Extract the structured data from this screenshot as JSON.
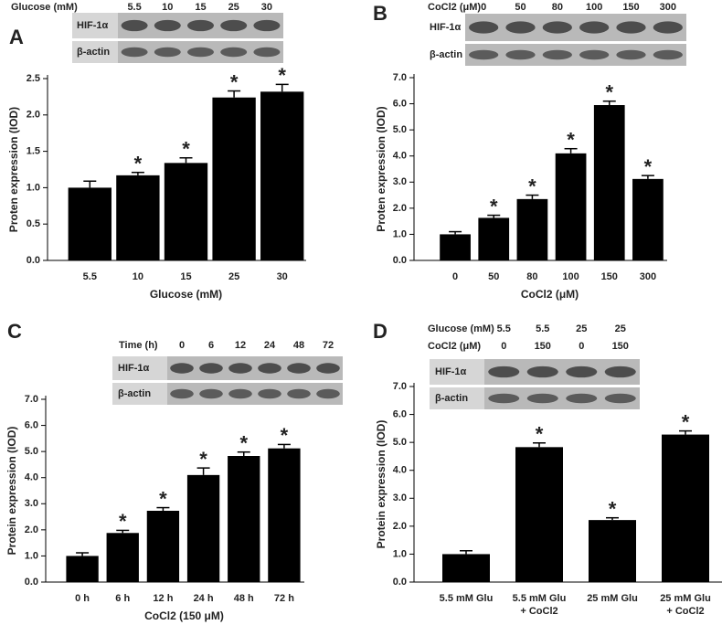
{
  "chart_data": [
    {
      "type": "bar",
      "panel": "A",
      "blot": {
        "headers": [
          {
            "label": "Glucose (mM)",
            "lanes": [
              "5.5",
              "10",
              "15",
              "25",
              "30"
            ]
          }
        ],
        "rows": [
          "HIF-1α",
          "β-actin"
        ]
      },
      "categories": [
        "5.5",
        "10",
        "15",
        "25",
        "30"
      ],
      "values": [
        1.0,
        1.17,
        1.34,
        2.24,
        2.32
      ],
      "errors": [
        0.09,
        0.04,
        0.07,
        0.09,
        0.1
      ],
      "annotations": [
        null,
        "*",
        "*",
        "*",
        "*"
      ],
      "xlabel": "Glucose (mM)",
      "ylabel": "Proten expression (IOD)",
      "color": "#000000",
      "ylim": [
        0,
        2.5
      ],
      "yticks": [
        {
          "value": 0,
          "label": "0.0"
        },
        {
          "value": 0.5,
          "label": "0.5"
        },
        {
          "value": 1,
          "label": "1.0"
        },
        {
          "value": 1.5,
          "label": "1.5"
        },
        {
          "value": 2,
          "label": "2.0"
        },
        {
          "value": 2.5,
          "label": "2.5"
        }
      ]
    },
    {
      "type": "bar",
      "panel": "B",
      "blot": {
        "headers": [
          {
            "label": "CoCl2 (μM)",
            "lanes": [
              "0",
              "50",
              "80",
              "100",
              "150",
              "300"
            ]
          }
        ],
        "rows": [
          "HIF-1α",
          "β-actin"
        ]
      },
      "categories": [
        "0",
        "50",
        "80",
        "100",
        "150",
        "300"
      ],
      "values": [
        1.0,
        1.63,
        2.35,
        4.1,
        5.95,
        3.12
      ],
      "errors": [
        0.1,
        0.1,
        0.15,
        0.18,
        0.15,
        0.13
      ],
      "annotations": [
        null,
        "*",
        "*",
        "*",
        "*",
        "*"
      ],
      "xlabel": "CoCl2 (μM)",
      "ylabel": "Proten expression (IOD)",
      "color": "#000000",
      "ylim": [
        0,
        7
      ],
      "yticks": [
        {
          "value": 0,
          "label": "0.0"
        },
        {
          "value": 1,
          "label": "1.0"
        },
        {
          "value": 2,
          "label": "2.0"
        },
        {
          "value": 3,
          "label": "3.0"
        },
        {
          "value": 4,
          "label": "4.0"
        },
        {
          "value": 5,
          "label": "5.0"
        },
        {
          "value": 6,
          "label": "6.0"
        },
        {
          "value": 7,
          "label": "7.0"
        }
      ]
    },
    {
      "type": "bar",
      "panel": "C",
      "blot": {
        "headers": [
          {
            "label": "Time (h)",
            "lanes": [
              "0",
              "6",
              "12",
              "24",
              "48",
              "72"
            ]
          }
        ],
        "rows": [
          "HIF-1α",
          "β-actin"
        ]
      },
      "categories": [
        "0 h",
        "6 h",
        "12 h",
        "24 h",
        "48 h",
        "72 h"
      ],
      "values": [
        1.0,
        1.88,
        2.73,
        4.1,
        4.83,
        5.12
      ],
      "errors": [
        0.12,
        0.1,
        0.12,
        0.27,
        0.15,
        0.15
      ],
      "annotations": [
        null,
        "*",
        "*",
        "*",
        "*",
        "*"
      ],
      "xlabel": "CoCl2 (150 μM)",
      "ylabel": "Protein expression (IOD)",
      "color": "#000000",
      "ylim": [
        0,
        7
      ],
      "yticks": [
        {
          "value": 0,
          "label": "0.0"
        },
        {
          "value": 1,
          "label": "1.0"
        },
        {
          "value": 2,
          "label": "2.0"
        },
        {
          "value": 3,
          "label": "3.0"
        },
        {
          "value": 4,
          "label": "4.0"
        },
        {
          "value": 5,
          "label": "5.0"
        },
        {
          "value": 6,
          "label": "6.0"
        },
        {
          "value": 7,
          "label": "7.0"
        }
      ]
    },
    {
      "type": "bar",
      "panel": "D",
      "blot": {
        "headers": [
          {
            "label": "Glucose (mM)",
            "lanes": [
              "5.5",
              "5.5",
              "25",
              "25"
            ]
          },
          {
            "label": "CoCl2 (μM)",
            "lanes": [
              "0",
              "150",
              "0",
              "150"
            ]
          }
        ],
        "rows": [
          "HIF-1α",
          "β-actin"
        ]
      },
      "categories": [
        [
          "5.5 mM Glu"
        ],
        [
          "5.5 mM Glu",
          "+ CoCl2"
        ],
        [
          "25 mM Glu"
        ],
        [
          "25 mM Glu",
          "+ CoCl2"
        ]
      ],
      "values": [
        1.0,
        4.83,
        2.22,
        5.28
      ],
      "errors": [
        0.12,
        0.15,
        0.08,
        0.13
      ],
      "annotations": [
        null,
        "*",
        "*",
        "*"
      ],
      "ylabel": "Protein expression (IOD)",
      "color": "#000000",
      "ylim": [
        0,
        7
      ],
      "yticks": [
        {
          "value": 0,
          "label": "0.0"
        },
        {
          "value": 1,
          "label": "1.0"
        },
        {
          "value": 2,
          "label": "2.0"
        },
        {
          "value": 3,
          "label": "3.0"
        },
        {
          "value": 4,
          "label": "4.0"
        },
        {
          "value": 5,
          "label": "5.0"
        },
        {
          "value": 6,
          "label": "6.0"
        },
        {
          "value": 7,
          "label": "7.0"
        }
      ]
    }
  ]
}
